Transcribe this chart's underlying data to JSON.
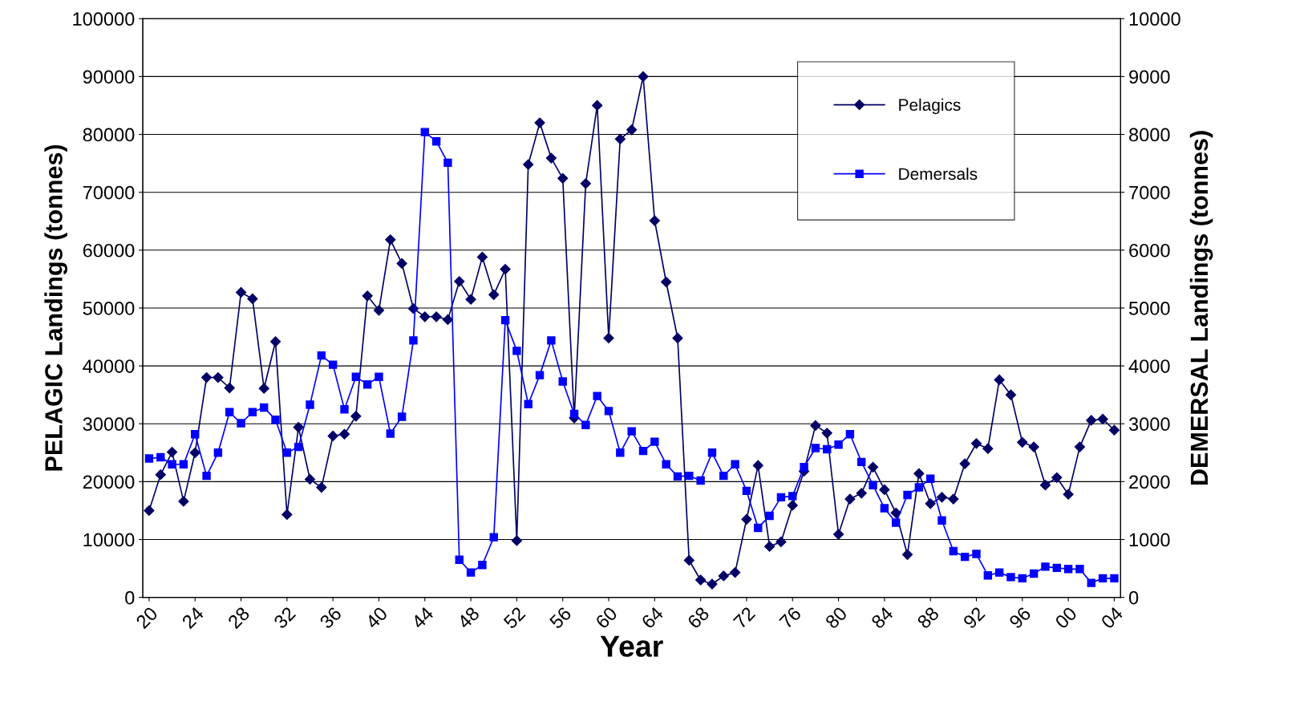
{
  "chart_data": {
    "type": "line",
    "xlabel": "Year",
    "ylabel": "PELAGIC Landings (tonnes)",
    "y2label": "DEMERSAL Landings (tonnes)",
    "categories": [
      "20",
      null,
      null,
      null,
      "24",
      null,
      null,
      null,
      "28",
      null,
      null,
      null,
      "32",
      null,
      null,
      null,
      "36",
      null,
      null,
      null,
      "40",
      null,
      null,
      null,
      "44",
      null,
      null,
      null,
      "48",
      null,
      null,
      null,
      "52",
      null,
      null,
      null,
      "56",
      null,
      null,
      null,
      "60",
      null,
      null,
      null,
      "64",
      null,
      null,
      null,
      "68",
      null,
      null,
      null,
      "72",
      null,
      null,
      null,
      "76",
      null,
      null,
      null,
      "80",
      null,
      null,
      null,
      "84",
      null,
      null,
      null,
      "88",
      null,
      null,
      null,
      "92",
      null,
      null,
      null,
      "96",
      null,
      null,
      null,
      "00",
      null,
      null,
      null,
      "04"
    ],
    "series": [
      {
        "name": "Pelagics",
        "color": "#000066",
        "marker": "diamond",
        "values": [
          15000,
          21200,
          25100,
          16600,
          25000,
          38000,
          38000,
          36200,
          52700,
          51600,
          36100,
          44200,
          14300,
          29400,
          20400,
          19000,
          27900,
          28200,
          31300,
          52100,
          49600,
          61800,
          57700,
          49900,
          48500,
          48500,
          48000,
          54600,
          51500,
          58800,
          52300,
          56700,
          9800,
          74800,
          82000,
          75900,
          72400,
          31000,
          71500,
          85000,
          44800,
          79200,
          80800,
          90000,
          65100,
          54500,
          44800,
          6400,
          3000,
          2300,
          3700,
          4300,
          13500,
          22800,
          8800,
          9600,
          15900,
          21800,
          29700,
          28400,
          10900,
          17000,
          18000,
          22500,
          18600,
          14600,
          7400,
          21400,
          16200,
          17300,
          17000,
          23100,
          26600,
          25700,
          37600,
          35000,
          26800,
          26000,
          19400,
          20700,
          17800,
          26000,
          30600,
          30800,
          28900
        ]
      },
      {
        "name": "Demersals",
        "color": "#0000ff",
        "marker": "square",
        "axis": "y2",
        "values": [
          2400,
          2420,
          2300,
          2300,
          2820,
          2100,
          2500,
          3200,
          3010,
          3200,
          3280,
          3070,
          2500,
          2600,
          3330,
          4180,
          4020,
          3250,
          3810,
          3680,
          3810,
          2830,
          3120,
          4440,
          8040,
          7880,
          7510,
          650,
          430,
          560,
          1040,
          4790,
          4260,
          3340,
          3840,
          4440,
          3730,
          3170,
          2980,
          3480,
          3220,
          2500,
          2870,
          2530,
          2690,
          2300,
          2090,
          2100,
          2020,
          2500,
          2100,
          2300,
          1840,
          1200,
          1410,
          1730,
          1750,
          2250,
          2580,
          2560,
          2640,
          2820,
          2340,
          1940,
          1540,
          1290,
          1770,
          1900,
          2050,
          1330,
          800,
          700,
          750,
          380,
          430,
          350,
          330,
          410,
          530,
          510,
          490,
          490,
          250,
          330,
          330
        ]
      }
    ],
    "ylim": [
      0,
      100000
    ],
    "yticks": [
      0,
      10000,
      20000,
      30000,
      40000,
      50000,
      60000,
      70000,
      80000,
      90000,
      100000
    ],
    "y2lim": [
      0,
      10000
    ],
    "y2ticks": [
      0,
      1000,
      2000,
      3000,
      4000,
      5000,
      6000,
      7000,
      8000,
      9000,
      10000
    ],
    "grid": "y",
    "legend": "top right",
    "line_style": "solid"
  }
}
